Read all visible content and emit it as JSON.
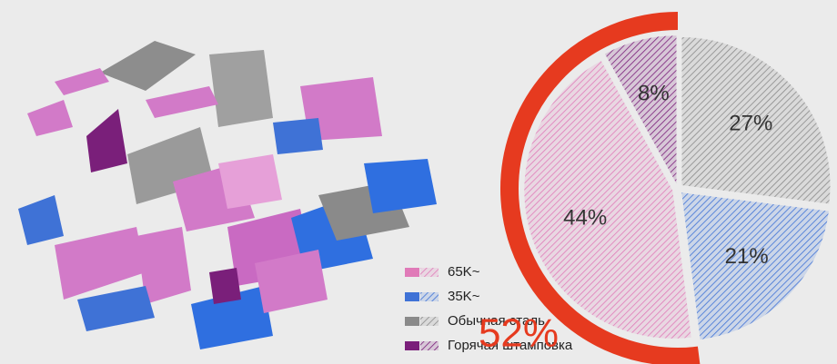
{
  "chart_data": {
    "type": "pie",
    "categories": [
      "Обычная сталь",
      "35K~",
      "65K~",
      "Горячая штамповка"
    ],
    "values": [
      27,
      21,
      44,
      8
    ],
    "value_labels": [
      "27%",
      "21%",
      "44%",
      "8%"
    ],
    "colors": [
      "#8a8a8a",
      "#3f72d6",
      "#e07ab8",
      "#7a1f7a"
    ],
    "highlight": {
      "value": 52,
      "label": "52%",
      "color": "#e63a1f"
    }
  }
}
